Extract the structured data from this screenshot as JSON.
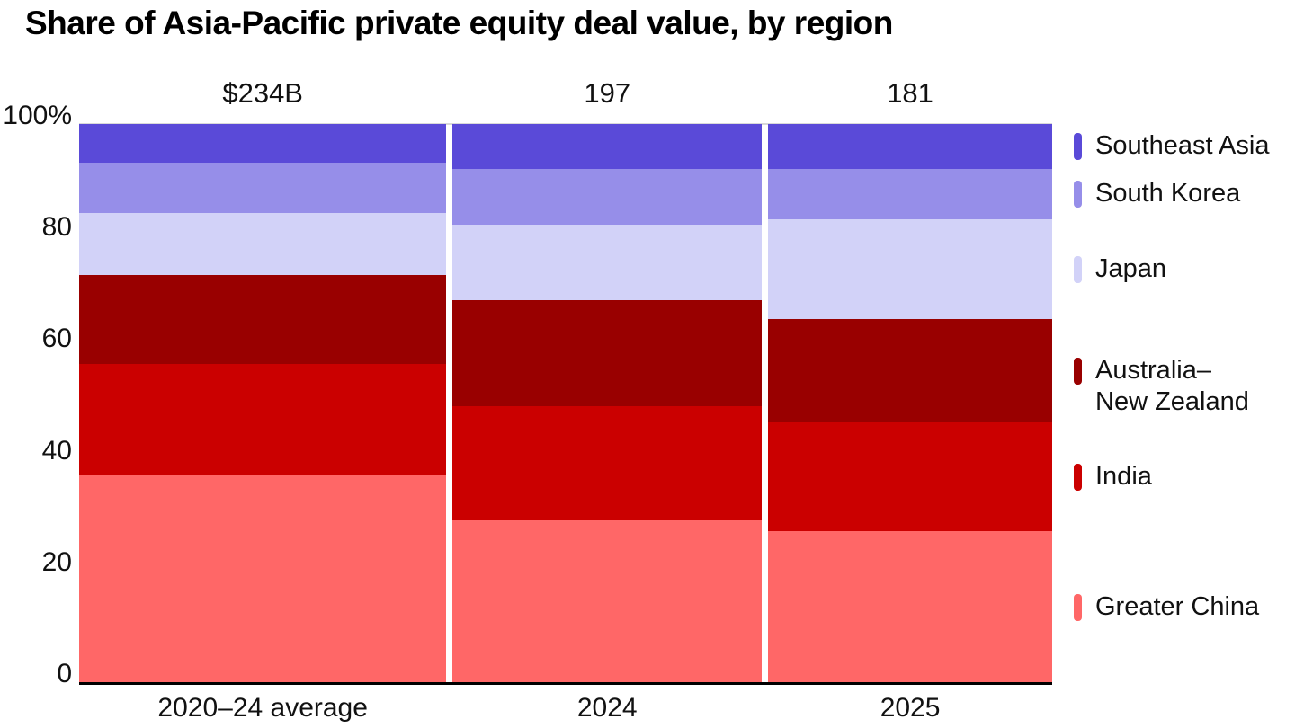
{
  "title": "Share of Asia-Pacific private equity deal value, by region",
  "chart_data": {
    "type": "bar",
    "variant": "100% stacked columns; column width proportional to total deal value (marimekko-style)",
    "title": "Share of Asia-Pacific private equity deal value, by region",
    "categories": [
      "2020–24 average",
      "2024",
      "2025"
    ],
    "column_totals": {
      "labels": [
        "$234B",
        "197",
        "181"
      ],
      "values_usd_billion": [
        234,
        197,
        181
      ]
    },
    "y_axis": {
      "ticks": [
        "100%",
        "80",
        "60",
        "40",
        "20",
        "0"
      ],
      "min": 0,
      "max": 100,
      "unit": "%"
    },
    "series": [
      {
        "name": "Greater China",
        "color": "#ff6767",
        "values": [
          37,
          29,
          27
        ]
      },
      {
        "name": "India",
        "color": "#cb0000",
        "values": [
          20,
          20.5,
          19.5
        ]
      },
      {
        "name": "Australia–New Zealand",
        "color": "#990000",
        "values": [
          16,
          19,
          18.5
        ]
      },
      {
        "name": "Japan",
        "color": "#d2d2f8",
        "values": [
          11,
          13.5,
          18
        ]
      },
      {
        "name": "South Korea",
        "color": "#968ee9",
        "values": [
          9,
          10,
          9
        ]
      },
      {
        "name": "Southeast Asia",
        "color": "#5a4ad8",
        "values": [
          7,
          8,
          8
        ]
      }
    ],
    "legend": {
      "position": "right, aligned to last column segment midpoints",
      "items": [
        {
          "name": "Southeast Asia",
          "lines": [
            "Southeast Asia"
          ],
          "color": "#5a4ad8"
        },
        {
          "name": "South Korea",
          "lines": [
            "South Korea"
          ],
          "color": "#968ee9"
        },
        {
          "name": "Japan",
          "lines": [
            "Japan"
          ],
          "color": "#d2d2f8"
        },
        {
          "name": "Australia–New Zealand",
          "lines": [
            "Australia–",
            "New Zealand"
          ],
          "color": "#990000"
        },
        {
          "name": "India",
          "lines": [
            "India"
          ],
          "color": "#cb0000"
        },
        {
          "name": "Greater China",
          "lines": [
            "Greater China"
          ],
          "color": "#ff6767"
        }
      ]
    },
    "grid": "single light gridline at 100% only",
    "axis_color": "#000000",
    "gridline_color": "#d9d9d9",
    "text_color": "#111111",
    "background_color": "#ffffff"
  }
}
